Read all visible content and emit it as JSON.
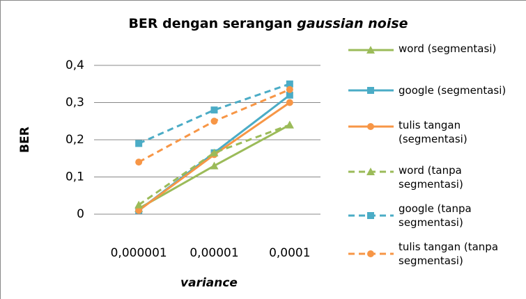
{
  "chart_data": {
    "type": "line",
    "title": [
      "BER dengan serangan",
      "gaussian noise"
    ],
    "x_label": "variance",
    "y_label": "BER",
    "categories": [
      "0,000001",
      "0,00001",
      "0,0001"
    ],
    "ylim": [
      0,
      0.4
    ],
    "yticks": [
      0,
      {
        "value": 0.1,
        "label": "0,1"
      },
      {
        "value": 0.2,
        "label": "0,2"
      },
      {
        "value": 0.3,
        "label": "0,3"
      },
      {
        "value": 0.4,
        "label": "0,4"
      }
    ],
    "grid": true,
    "legend": "right",
    "series": [
      {
        "name": "word (segmentasi)",
        "color": "#9bbb59",
        "marker": "triangle",
        "dashed": false,
        "values": [
          0.015,
          0.13,
          0.24
        ]
      },
      {
        "name": "google (segmentasi)",
        "color": "#4bacc6",
        "marker": "square",
        "dashed": false,
        "values": [
          0.01,
          0.165,
          0.32
        ]
      },
      {
        "name": "tulis tangan (segmentasi)",
        "color": "#f79646",
        "marker": "circle",
        "dashed": false,
        "values": [
          0.01,
          0.16,
          0.3
        ]
      },
      {
        "name": "word (tanpa segmentasi)",
        "color": "#9bbb59",
        "marker": "triangle",
        "dashed": true,
        "values": [
          0.025,
          0.165,
          0.24
        ]
      },
      {
        "name": "google (tanpa segmentasi)",
        "color": "#4bacc6",
        "marker": "square",
        "dashed": true,
        "values": [
          0.19,
          0.28,
          0.35
        ]
      },
      {
        "name": "tulis tangan (tanpa segmentasi)",
        "color": "#f79646",
        "marker": "circle",
        "dashed": true,
        "values": [
          0.14,
          0.25,
          0.335
        ]
      }
    ]
  }
}
